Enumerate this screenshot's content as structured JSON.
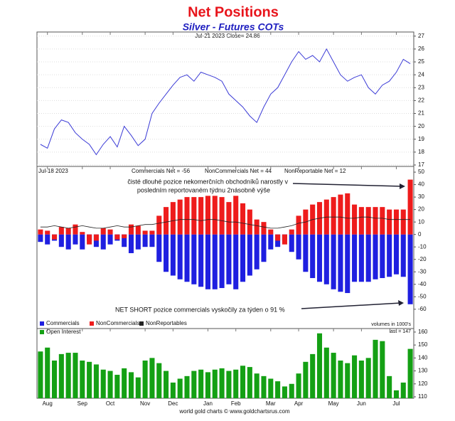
{
  "chart_data": [
    {
      "type": "line",
      "title": "Net Positions",
      "subtitle": "Silver - Futures COTs",
      "header": "Jul-21  2023  Close= 24.86",
      "color": "#3b3bd6",
      "values": [
        18.6,
        18.3,
        19.8,
        20.5,
        20.3,
        19.5,
        19.0,
        18.6,
        17.8,
        18.6,
        19.2,
        18.4,
        20.0,
        19.3,
        18.5,
        19.0,
        21.0,
        21.8,
        22.5,
        23.2,
        23.8,
        24.0,
        23.5,
        24.2,
        24.0,
        23.8,
        23.5,
        22.5,
        22.0,
        21.5,
        20.8,
        20.3,
        21.5,
        22.5,
        23.0,
        24.0,
        25.0,
        25.8,
        25.2,
        25.5,
        25.0,
        26.0,
        25.0,
        24.0,
        23.5,
        23.8,
        24.0,
        23.0,
        22.5,
        23.2,
        23.5,
        24.2,
        25.2,
        24.86
      ],
      "ylim": [
        16.89,
        27.32
      ],
      "yticks": [
        17,
        18,
        19,
        20,
        21,
        22,
        23,
        24,
        25,
        26,
        27
      ],
      "grid": true
    },
    {
      "type": "bar",
      "date": "Jul-18  2023",
      "stats": [
        "Commercials Net = -56",
        "NonCommercials Net = 44",
        "NonReportable Net = 12"
      ],
      "annotations": [
        "čisté dlouhé pozice nekomerčních obchodníků narostly v",
        "posledním reportovaném týdnu 2násobně výše",
        "NET SHORT pozice commercials vyskočily za týden o 91 %"
      ],
      "units_note": "volumes in 1000's",
      "series": [
        {
          "name": "Commercials",
          "color": "#1f1fe0",
          "values": [
            -6,
            -8,
            -5,
            -10,
            -12,
            -8,
            -12,
            -5,
            -10,
            -12,
            -8,
            -5,
            -10,
            -15,
            -12,
            -10,
            -10,
            -22,
            -30,
            -33,
            -36,
            -38,
            -40,
            -42,
            -44,
            -44,
            -43,
            -40,
            -44,
            -38,
            -33,
            -28,
            -22,
            -12,
            -10,
            -5,
            -14,
            -20,
            -30,
            -35,
            -38,
            -40,
            -44,
            -46,
            -47,
            -38,
            -38,
            -38,
            -36,
            -35,
            -34,
            -32,
            -34,
            -56
          ]
        },
        {
          "name": "NonCommercials",
          "color": "#ee1c1c",
          "values": [
            4,
            3,
            -4,
            6,
            5,
            8,
            2,
            -8,
            -5,
            5,
            4,
            -4,
            -3,
            8,
            7,
            3,
            3,
            15,
            22,
            26,
            28,
            30,
            30,
            30,
            31,
            31,
            30,
            26,
            31,
            25,
            20,
            12,
            10,
            4,
            -5,
            -8,
            4,
            15,
            20,
            24,
            26,
            28,
            30,
            32,
            33,
            24,
            22,
            22,
            22,
            22,
            20,
            20,
            20,
            44
          ]
        },
        {
          "name": "NonReportables",
          "color": "#222222",
          "type": "line",
          "values": [
            6,
            6,
            7,
            6,
            5,
            6,
            7,
            6,
            5,
            5,
            6,
            7,
            6,
            6,
            7,
            8,
            8,
            9,
            10,
            11,
            12,
            12,
            12,
            11,
            12,
            12,
            11,
            10,
            10,
            9,
            8,
            7,
            6,
            5,
            5,
            6,
            7,
            9,
            10,
            12,
            13,
            14,
            14,
            14,
            13,
            13,
            14,
            14,
            13,
            13,
            12,
            12,
            12,
            12
          ]
        }
      ],
      "ylim": [
        -75.5,
        54.6
      ],
      "yticks": [
        50,
        40,
        30,
        20,
        10,
        0,
        -10,
        -20,
        -30,
        -40,
        -50,
        -60
      ]
    },
    {
      "type": "bar",
      "annotation": "last = 147",
      "footer": "world gold charts © www.goldchartsrus.com",
      "categories": [
        null,
        "Aug",
        null,
        null,
        null,
        null,
        "Sep",
        null,
        null,
        null,
        "Oct",
        null,
        null,
        null,
        null,
        "Nov",
        null,
        null,
        null,
        "Dec",
        null,
        null,
        null,
        null,
        "Jan",
        null,
        null,
        null,
        "Feb",
        null,
        null,
        null,
        null,
        "Mar",
        null,
        null,
        null,
        "Apr",
        null,
        null,
        null,
        null,
        "May",
        null,
        null,
        null,
        "Jun",
        null,
        null,
        null,
        null,
        "Jul",
        null,
        null
      ],
      "series": [
        {
          "name": "Open Interest",
          "color": "#14a014",
          "values": [
            145,
            148,
            138,
            143,
            144,
            144,
            138,
            137,
            135,
            131,
            130,
            127,
            132,
            129,
            125,
            138,
            140,
            136,
            130,
            121,
            124,
            126,
            130,
            131,
            129,
            131,
            132,
            130,
            131,
            134,
            133,
            128,
            126,
            124,
            122,
            118,
            120,
            128,
            137,
            143,
            159,
            148,
            144,
            138,
            136,
            142,
            138,
            140,
            154,
            153,
            126,
            115,
            121,
            147
          ]
        }
      ],
      "ylim": [
        108.9,
        162.7
      ],
      "yticks": [
        110,
        120,
        130,
        140,
        150,
        160
      ]
    }
  ]
}
